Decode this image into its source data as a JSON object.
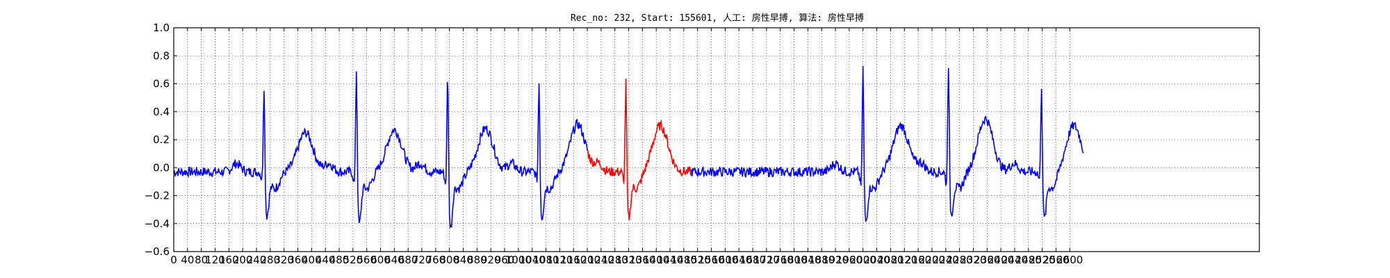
{
  "chart_data": {
    "type": "line",
    "title": "Rec_no: 232, Start: 155601, 人工: 房性早搏, 算法: 房性早搏",
    "xlabel": "",
    "ylabel": "",
    "xlim": [
      0,
      3150
    ],
    "ylim": [
      -0.6,
      1.0
    ],
    "grid": true,
    "x_ticks": [
      0,
      40,
      80,
      120,
      160,
      200,
      240,
      280,
      320,
      360,
      400,
      440,
      480,
      520,
      560,
      600,
      640,
      680,
      720,
      760,
      800,
      840,
      880,
      920,
      960,
      1000,
      1040,
      1080,
      1120,
      1160,
      1200,
      1240,
      1280,
      1320,
      1360,
      1400,
      1440,
      1480,
      1520,
      1560,
      1600,
      1640,
      1680,
      1720,
      1760,
      1800,
      1840,
      1880,
      1920,
      1960,
      2000,
      2040,
      2080,
      2120,
      2160,
      2200,
      2240,
      2280,
      2320,
      2360,
      2400,
      2440,
      2480,
      2520,
      2560,
      2600
    ],
    "y_ticks": [
      -0.6,
      -0.4,
      -0.2,
      0.0,
      0.2,
      0.4,
      0.6,
      0.8,
      1.0
    ],
    "y_tick_labels": [
      "−0.6",
      "−0.4",
      "−0.2",
      "0.0",
      "0.2",
      "0.4",
      "0.6",
      "0.8",
      "1.0"
    ],
    "highlight_range": [
      1200,
      1500
    ],
    "series": [
      {
        "color": "#0000ff",
        "beats": [
          {
            "r": 262,
            "amp": 0.7,
            "q": -0.05,
            "s": -0.31,
            "tpos": 382,
            "tamp": 0.28
          },
          {
            "r": 530,
            "amp": 0.84,
            "q": -0.08,
            "s": -0.37,
            "tpos": 640,
            "tamp": 0.3
          },
          {
            "r": 795,
            "amp": 0.81,
            "q": -0.08,
            "s": -0.4,
            "tpos": 905,
            "tamp": 0.31
          },
          {
            "r": 1060,
            "amp": 0.73,
            "q": -0.05,
            "s": -0.32,
            "tpos": 1172,
            "tamp": 0.34
          },
          {
            "r": 2000,
            "amp": 0.85,
            "q": -0.1,
            "s": -0.35,
            "tpos": 2110,
            "tamp": 0.33
          },
          {
            "r": 2248,
            "amp": 0.86,
            "q": -0.08,
            "s": -0.3,
            "tpos": 2355,
            "tamp": 0.38
          },
          {
            "r": 2518,
            "amp": 0.71,
            "q": -0.05,
            "s": -0.33,
            "tpos": 2612,
            "tamp": 0.33
          }
        ]
      },
      {
        "color": "#ff0000",
        "beats": [
          {
            "r": 1312,
            "amp": 0.73,
            "q": -0.06,
            "s": -0.33,
            "tpos": 1412,
            "tamp": 0.33
          }
        ]
      }
    ],
    "x_range_drawn": [
      0,
      2640
    ],
    "baseline_segments": [
      {
        "from": 0,
        "to": 250,
        "level": -0.04
      },
      {
        "from": 1480,
        "to": 1985,
        "level": -0.02
      }
    ]
  }
}
